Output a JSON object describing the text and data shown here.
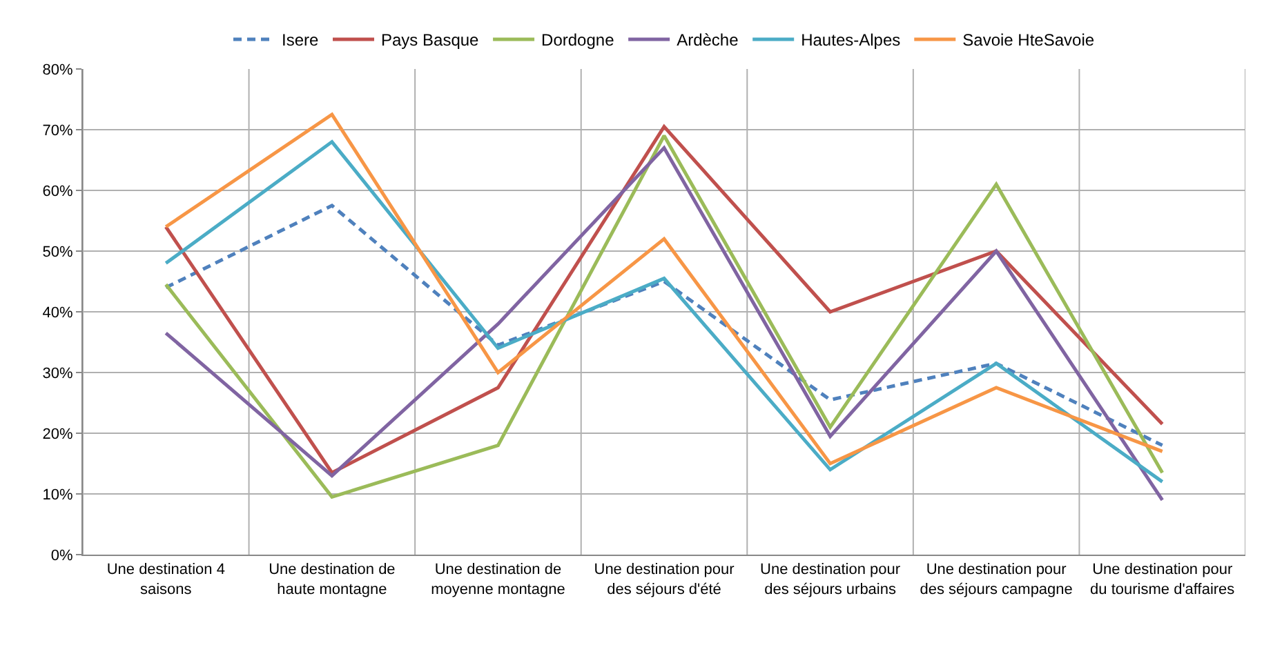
{
  "chart_data": {
    "type": "line",
    "categories": [
      "Une destination 4 saisons",
      "Une destination de haute montagne",
      "Une destination de moyenne montagne",
      "Une destination pour des séjours d'été",
      "Une destination pour des séjours urbains",
      "Une destination pour des séjours campagne",
      "Une destination pour du tourisme d'affaires"
    ],
    "series": [
      {
        "name": "Isere",
        "color": "#4f81bd",
        "line_style": "dashed",
        "values": [
          44,
          57.5,
          34.5,
          45,
          25.5,
          31.5,
          18
        ]
      },
      {
        "name": "Pays Basque",
        "color": "#c0504d",
        "values": [
          54,
          13.5,
          27.5,
          70.5,
          40,
          50,
          21.5
        ]
      },
      {
        "name": "Dordogne",
        "color": "#9bbb59",
        "values": [
          44.5,
          9.5,
          18,
          69,
          21,
          61,
          13.5
        ]
      },
      {
        "name": "Ardèche",
        "color": "#8064a2",
        "values": [
          36.5,
          13,
          38,
          67,
          19.5,
          50,
          9
        ]
      },
      {
        "name": "Hautes-Alpes",
        "color": "#4bacc6",
        "values": [
          48,
          68,
          34,
          45.5,
          14,
          31.5,
          12
        ]
      },
      {
        "name": "Savoie HteSavoie",
        "color": "#f79646",
        "values": [
          54,
          72.5,
          30,
          52,
          15,
          27.5,
          17
        ]
      }
    ],
    "ylim": [
      0,
      80
    ],
    "yticks": [
      {
        "value": 0,
        "label": "0%"
      },
      {
        "value": 10,
        "label": "10%"
      },
      {
        "value": 20,
        "label": "20%"
      },
      {
        "value": 30,
        "label": "30%"
      },
      {
        "value": 40,
        "label": "40%"
      },
      {
        "value": 50,
        "label": "50%"
      },
      {
        "value": 60,
        "label": "60%"
      },
      {
        "value": 70,
        "label": "70%"
      },
      {
        "value": 80,
        "label": "80%"
      }
    ],
    "grid": true,
    "legend": "top",
    "line_style": "solid",
    "marker": "none"
  }
}
